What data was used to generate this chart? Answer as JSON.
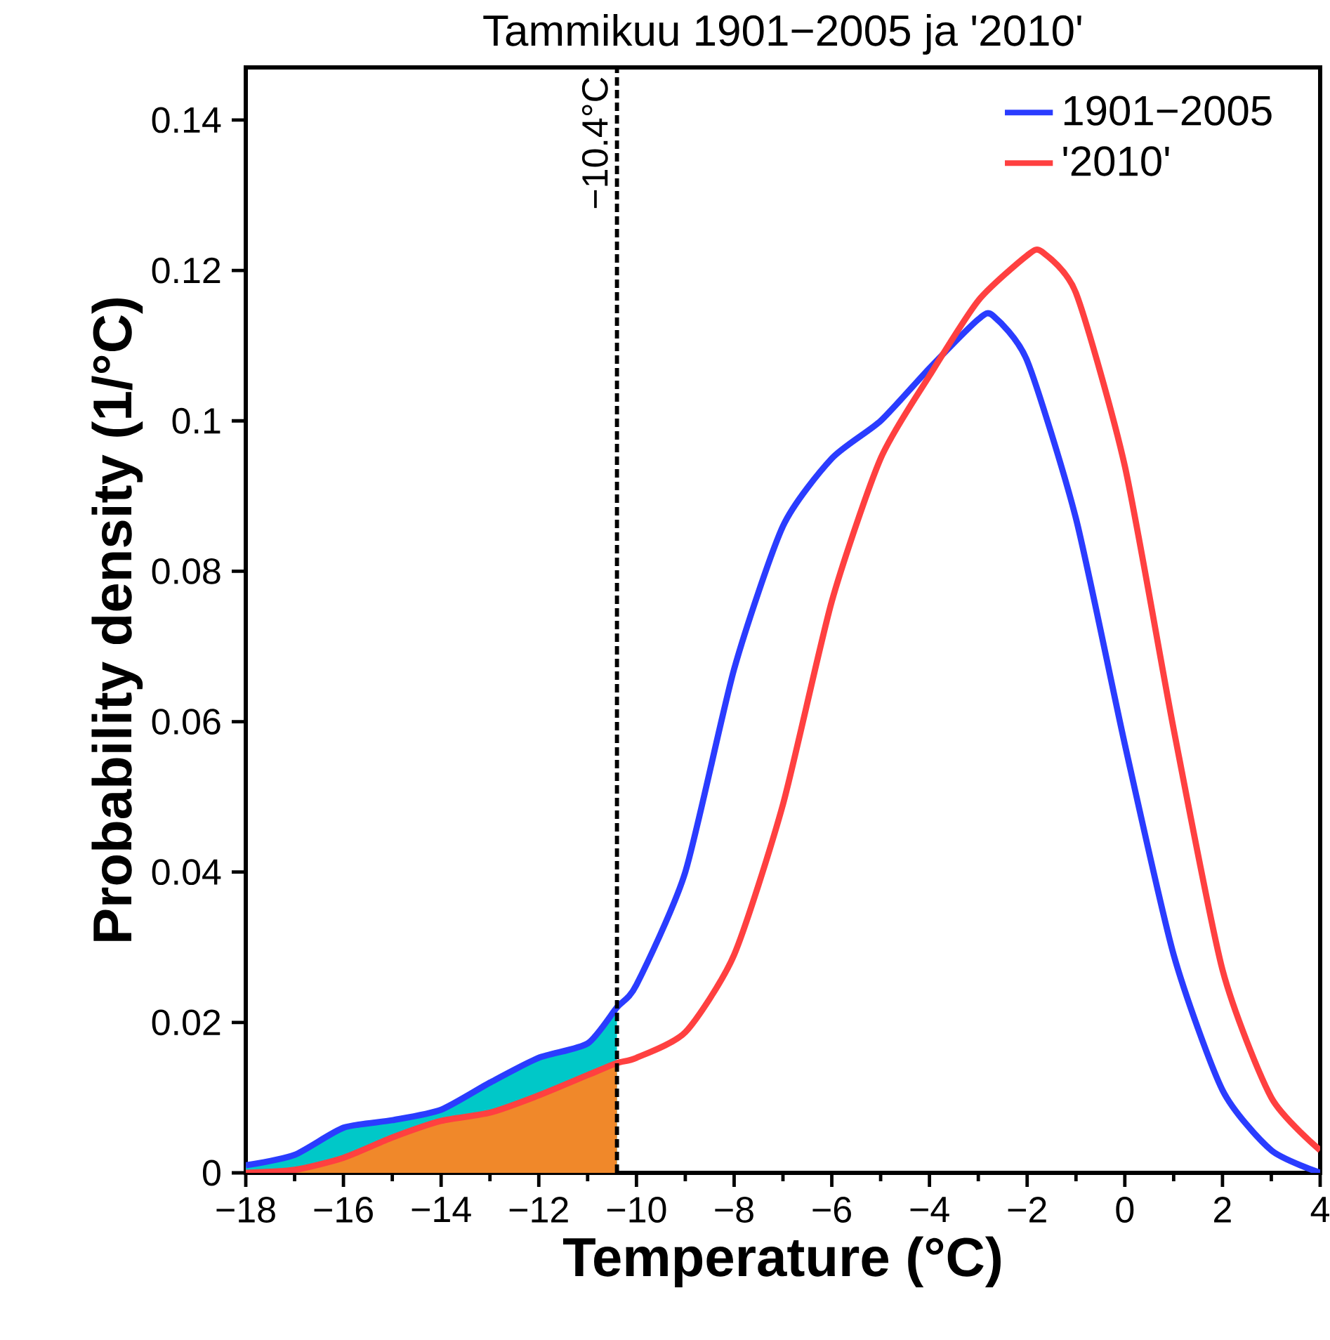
{
  "chart_data": {
    "type": "line",
    "title": "Tammikuu  1901−2005  ja  '2010'",
    "xlabel": "Temperature (°C)",
    "ylabel": "Probability density (1/°C)",
    "xlim": [
      -18,
      4
    ],
    "ylim": [
      0,
      0.147
    ],
    "xticks": [
      {
        "value": -18,
        "label": "−18"
      },
      {
        "value": -16,
        "label": "−16"
      },
      {
        "value": -14,
        "label": "−14"
      },
      {
        "value": -12,
        "label": "−12"
      },
      {
        "value": -10,
        "label": "−10"
      },
      {
        "value": -8,
        "label": "−8"
      },
      {
        "value": -6,
        "label": "−6"
      },
      {
        "value": -4,
        "label": "−4"
      },
      {
        "value": -2,
        "label": "−2"
      },
      0,
      2,
      4
    ],
    "yticks": [
      0,
      0.02,
      0.04,
      0.06,
      0.08,
      0.1,
      0.12,
      0.14
    ],
    "legend": "top right",
    "grid": false,
    "marker": "none",
    "ref_lines": [
      {
        "axis": "x",
        "value": -10.4,
        "label": "−10.4°C",
        "color": "#000000",
        "line_style": "dashed"
      }
    ],
    "series": [
      {
        "type": "area",
        "color": "#00c8c8",
        "x": [
          -18,
          -17,
          -16,
          -15,
          -14,
          -13,
          -12,
          -11,
          -10.4
        ],
        "values": [
          0.001,
          0.0024,
          0.006,
          0.007,
          0.0084,
          0.012,
          0.0153,
          0.0172,
          0.022
        ]
      },
      {
        "type": "area",
        "color": "#f0882a",
        "x": [
          -18,
          -17,
          -16,
          -15,
          -14,
          -13,
          -12,
          -11,
          -10.4
        ],
        "values": [
          0,
          0.0004,
          0.002,
          0.0047,
          0.0069,
          0.008,
          0.0103,
          0.013,
          0.0146
        ]
      },
      {
        "name": "1901−2005",
        "color": "#2a3cff",
        "x": [
          -18,
          -17,
          -16,
          -15,
          -14,
          -13,
          -12,
          -11,
          -10.4,
          -10,
          -9,
          -8,
          -7,
          -6,
          -5,
          -4,
          -3,
          -2.7,
          -2,
          -1,
          0,
          1,
          2,
          3,
          4
        ],
        "values": [
          0.001,
          0.0024,
          0.006,
          0.007,
          0.0084,
          0.012,
          0.0153,
          0.0172,
          0.022,
          0.025,
          0.04,
          0.067,
          0.086,
          0.095,
          0.1,
          0.107,
          0.1135,
          0.114,
          0.108,
          0.087,
          0.057,
          0.029,
          0.011,
          0.003,
          0
        ]
      },
      {
        "name": "'2010'",
        "color": "#ff4040",
        "x": [
          -18,
          -17,
          -16,
          -15,
          -14,
          -13,
          -12,
          -11,
          -10.4,
          -10,
          -9,
          -8,
          -7,
          -6,
          -5,
          -4,
          -3,
          -2,
          -1.7,
          -1,
          0,
          1,
          2,
          3,
          4
        ],
        "values": [
          0,
          0.0004,
          0.002,
          0.0047,
          0.0069,
          0.008,
          0.0103,
          0.013,
          0.0146,
          0.0153,
          0.0187,
          0.029,
          0.049,
          0.076,
          0.095,
          0.106,
          0.116,
          0.122,
          0.1225,
          0.117,
          0.094,
          0.059,
          0.027,
          0.01,
          0.003
        ]
      }
    ]
  }
}
